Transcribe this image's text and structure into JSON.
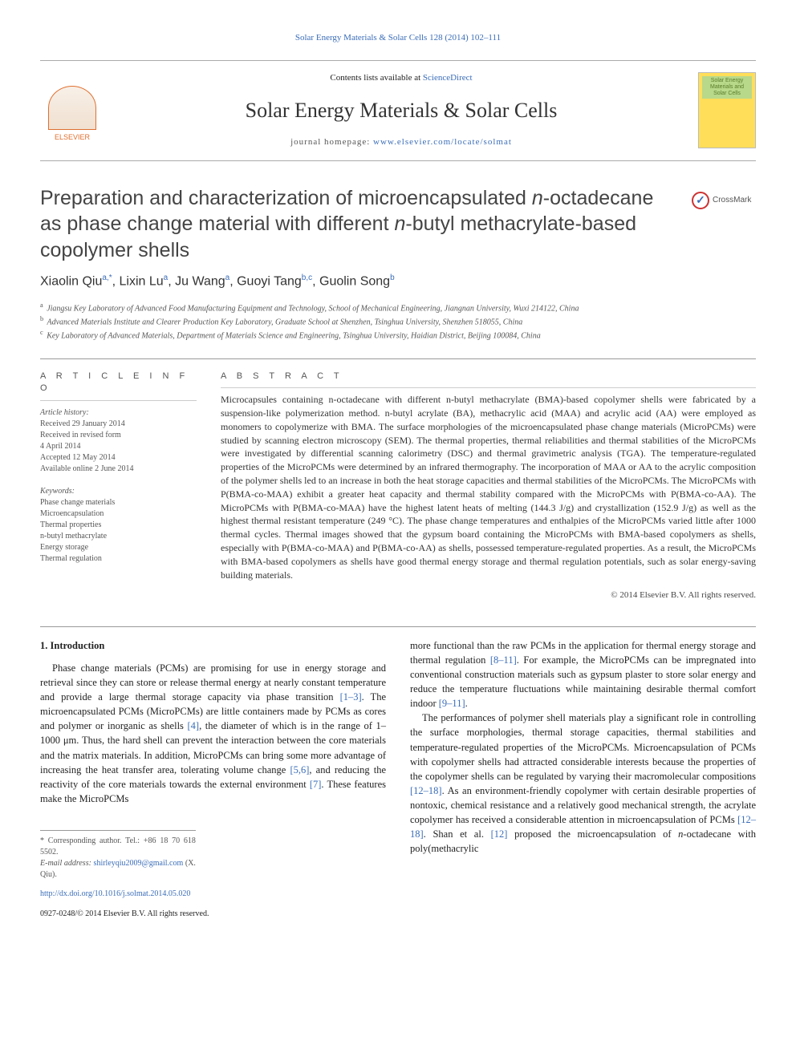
{
  "top_citation": "Solar Energy Materials & Solar Cells 128 (2014) 102–111",
  "header": {
    "elsevier_label": "ELSEVIER",
    "contents_prefix": "Contents lists available at ",
    "contents_link": "ScienceDirect",
    "journal_name": "Solar Energy Materials & Solar Cells",
    "homepage_prefix": "journal homepage: ",
    "homepage_link": "www.elsevier.com/locate/solmat",
    "cover_text": "Solar Energy Materials and Solar Cells"
  },
  "crossmark_label": "CrossMark",
  "title": "Preparation and characterization of microencapsulated n-octadecane as phase change material with different n-butyl methacrylate-based copolymer shells",
  "authors_html": "Xiaolin Qiu<sup>a,*</sup>, Lixin Lu<sup>a</sup>, Ju Wang<sup>a</sup>, Guoyi Tang<sup>b,c</sup>, Guolin Song<sup>b</sup>",
  "affiliations": [
    {
      "sup": "a",
      "text": "Jiangsu Key Laboratory of Advanced Food Manufacturing Equipment and Technology, School of Mechanical Engineering, Jiangnan University, Wuxi 214122, China"
    },
    {
      "sup": "b",
      "text": "Advanced Materials Institute and Clearer Production Key Laboratory, Graduate School at Shenzhen, Tsinghua University, Shenzhen 518055, China"
    },
    {
      "sup": "c",
      "text": "Key Laboratory of Advanced Materials, Department of Materials Science and Engineering, Tsinghua University, Haidian District, Beijing 100084, China"
    }
  ],
  "article_info": {
    "label": "A R T I C L E   I N F O",
    "history_label": "Article history:",
    "history": [
      "Received 29 January 2014",
      "Received in revised form",
      "4 April 2014",
      "Accepted 12 May 2014",
      "Available online 2 June 2014"
    ],
    "keywords_label": "Keywords:",
    "keywords": [
      "Phase change materials",
      "Microencapsulation",
      "Thermal properties",
      "n-butyl methacrylate",
      "Energy storage",
      "Thermal regulation"
    ]
  },
  "abstract": {
    "label": "A B S T R A C T",
    "text": "Microcapsules containing n-octadecane with different n-butyl methacrylate (BMA)-based copolymer shells were fabricated by a suspension-like polymerization method. n-butyl acrylate (BA), methacrylic acid (MAA) and acrylic acid (AA) were employed as monomers to copolymerize with BMA. The surface morphologies of the microencapsulated phase change materials (MicroPCMs) were studied by scanning electron microscopy (SEM). The thermal properties, thermal reliabilities and thermal stabilities of the MicroPCMs were investigated by differential scanning calorimetry (DSC) and thermal gravimetric analysis (TGA). The temperature-regulated properties of the MicroPCMs were determined by an infrared thermography. The incorporation of MAA or AA to the acrylic composition of the polymer shells led to an increase in both the heat storage capacities and thermal stabilities of the MicroPCMs. The MicroPCMs with P(BMA-co-MAA) exhibit a greater heat capacity and thermal stability compared with the MicroPCMs with P(BMA-co-AA). The MicroPCMs with P(BMA-co-MAA) have the highest latent heats of melting (144.3 J/g) and crystallization (152.9 J/g) as well as the highest thermal resistant temperature (249 °C). The phase change temperatures and enthalpies of the MicroPCMs varied little after 1000 thermal cycles. Thermal images showed that the gypsum board containing the MicroPCMs with BMA-based copolymers as shells, especially with P(BMA-co-MAA) and P(BMA-co-AA) as shells, possessed temperature-regulated properties. As a result, the MicroPCMs with BMA-based copolymers as shells have good thermal energy storage and thermal regulation potentials, such as solar energy-saving building materials.",
    "copyright": "© 2014 Elsevier B.V. All rights reserved."
  },
  "body": {
    "section_number": "1.",
    "section_title": "Introduction",
    "left_para": "Phase change materials (PCMs) are promising for use in energy storage and retrieval since they can store or release thermal energy at nearly constant temperature and provide a large thermal storage capacity via phase transition [1–3]. The microencapsulated PCMs (MicroPCMs) are little containers made by PCMs as cores and polymer or inorganic as shells [4], the diameter of which is in the range of 1–1000 μm. Thus, the hard shell can prevent the interaction between the core materials and the matrix materials. In addition, MicroPCMs can bring some more advantage of increasing the heat transfer area, tolerating volume change [5,6], and reducing the reactivity of the core materials towards the external environment [7]. These features make the MicroPCMs",
    "right_para1": "more functional than the raw PCMs in the application for thermal energy storage and thermal regulation [8–11]. For example, the MicroPCMs can be impregnated into conventional construction materials such as gypsum plaster to store solar energy and reduce the temperature fluctuations while maintaining desirable thermal comfort indoor [9–11].",
    "right_para2": "The performances of polymer shell materials play a significant role in controlling the surface morphologies, thermal storage capacities, thermal stabilities and temperature-regulated properties of the MicroPCMs. Microencapsulation of PCMs with copolymer shells had attracted considerable interests because the properties of the copolymer shells can be regulated by varying their macromolecular compositions [12–18]. As an environment-friendly copolymer with certain desirable properties of nontoxic, chemical resistance and a relatively good mechanical strength, the acrylate copolymer has received a considerable attention in microencapsulation of PCMs [12–18]. Shan et al. [12] proposed the microencapsulation of n-octadecane with poly(methacrylic"
  },
  "refs": {
    "r1": "[1–3]",
    "r4": "[4]",
    "r5": "[5,6]",
    "r7": "[7]",
    "r8": "[8–11]",
    "r9": "[9–11]",
    "r12a": "[12–18]",
    "r12b": "[12–18]",
    "r12c": "[12]"
  },
  "footnotes": {
    "corresponding_label": "* Corresponding author. Tel.: ",
    "corresponding_tel": "+86 18 70 618 5502.",
    "email_label": "E-mail address: ",
    "email": "shirleyqiu2009@gmail.com",
    "email_suffix": " (X. Qiu).",
    "doi_prefix": "http://dx.doi.org/",
    "doi": "10.1016/j.solmat.2014.05.020",
    "issn_line": "0927-0248/© 2014 Elsevier B.V. All rights reserved."
  },
  "colors": {
    "link": "#3a6db8",
    "elsevier": "#e07030",
    "cover_bg": "#ffde59",
    "cover_title_bg": "#b8d88a",
    "cover_text": "#5a7d2a",
    "crossmark_ring": "#c33"
  }
}
